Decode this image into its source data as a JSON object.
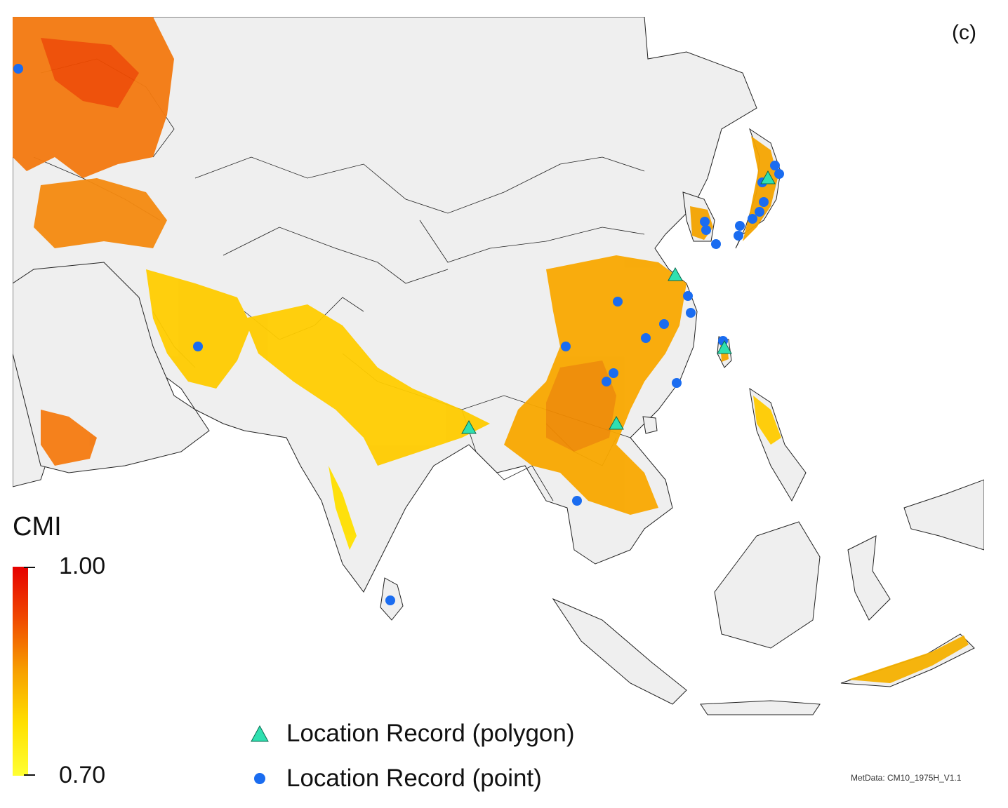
{
  "panel_label": "(c)",
  "legend": {
    "title": "CMI",
    "max_label": "1.00",
    "min_label": "0.70",
    "color_high": "#e60000",
    "color_low": "#ffff33"
  },
  "key": {
    "polygon_label": "Location Record (polygon)",
    "point_label": "Location Record (point)",
    "polygon_color": "#2fe0b0",
    "point_color": "#1a6cf0"
  },
  "metadata": "MetData: CM10_1975H_V1.1",
  "colors": {
    "land": "#efefef",
    "border": "#222222",
    "ocean": "#ffffff"
  }
}
